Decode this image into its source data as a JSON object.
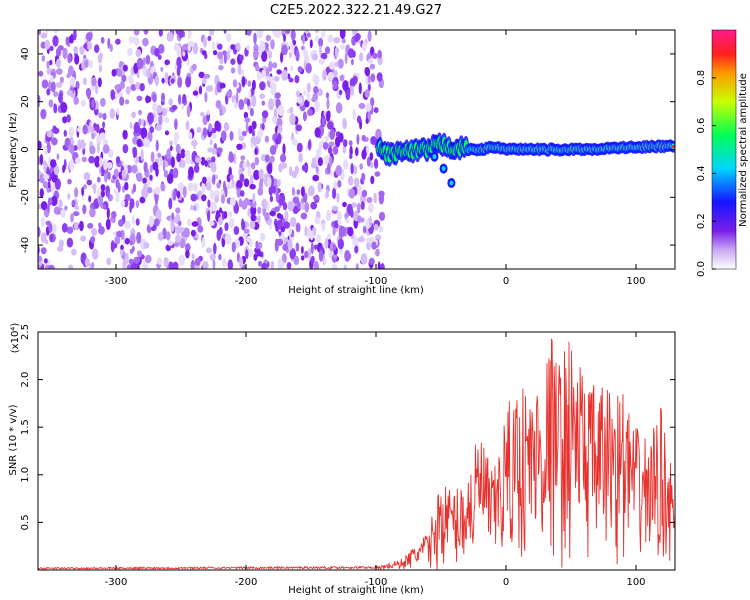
{
  "title": "C2E5.2022.322.21.49.G27",
  "chart_data": [
    {
      "type": "heatmap",
      "xlabel": "Height of straight line (km)",
      "ylabel": "Frequency (Hz)",
      "xlim": [
        -360,
        130
      ],
      "ylim": [
        -50,
        50
      ],
      "x_ticks": [
        -300,
        -200,
        -100,
        0,
        100
      ],
      "y_ticks": [
        -40,
        -20,
        0,
        20,
        40
      ],
      "noise_region_x": [
        -360,
        -95
      ],
      "signal_track": [
        {
          "x": -98,
          "y": 0.5
        },
        {
          "x": -90,
          "y": -2
        },
        {
          "x": -80,
          "y": -1
        },
        {
          "x": -70,
          "y": -1
        },
        {
          "x": -60,
          "y": 0
        },
        {
          "x": -50,
          "y": 2
        },
        {
          "x": -40,
          "y": 1
        },
        {
          "x": -30,
          "y": 0
        },
        {
          "x": -20,
          "y": 0
        },
        {
          "x": -10,
          "y": 1
        },
        {
          "x": 0,
          "y": 0
        },
        {
          "x": 20,
          "y": 0
        },
        {
          "x": 40,
          "y": 0
        },
        {
          "x": 60,
          "y": 0
        },
        {
          "x": 80,
          "y": 0.5
        },
        {
          "x": 100,
          "y": 1
        },
        {
          "x": 130,
          "y": 1.5
        }
      ],
      "side_branch": [
        {
          "x": -55,
          "y": -3
        },
        {
          "x": -48,
          "y": -8
        },
        {
          "x": -42,
          "y": -14
        }
      ],
      "colorbar": {
        "label": "Normalized spectral amplitude",
        "ticks": [
          "0.0",
          "0.2",
          "0.4",
          "0.6",
          "0.8"
        ],
        "range": [
          0,
          1
        ]
      }
    },
    {
      "type": "line",
      "xlabel": "Height of straight line (km)",
      "ylabel": "SNR (10 * v/v)",
      "y_scale_label": "(x10⁴)",
      "xlim": [
        -360,
        130
      ],
      "ylim": [
        0,
        2.5
      ],
      "x_ticks": [
        -300,
        -200,
        -100,
        0,
        100
      ],
      "y_ticks": [
        "0.5",
        "1.0",
        "1.5",
        "2.0",
        "2.5"
      ],
      "color": "#e8302c",
      "envelope": [
        {
          "x": -360,
          "y": 0.02
        },
        {
          "x": -100,
          "y": 0.03
        },
        {
          "x": -80,
          "y": 0.12
        },
        {
          "x": -60,
          "y": 0.4
        },
        {
          "x": -50,
          "y": 0.95
        },
        {
          "x": -40,
          "y": 0.85
        },
        {
          "x": -30,
          "y": 1.0
        },
        {
          "x": -20,
          "y": 1.5
        },
        {
          "x": -10,
          "y": 1.0
        },
        {
          "x": 0,
          "y": 1.7
        },
        {
          "x": 10,
          "y": 2.0
        },
        {
          "x": 20,
          "y": 1.9
        },
        {
          "x": 30,
          "y": 2.2
        },
        {
          "x": 35,
          "y": 2.5
        },
        {
          "x": 40,
          "y": 2.2
        },
        {
          "x": 50,
          "y": 2.5
        },
        {
          "x": 60,
          "y": 2.1
        },
        {
          "x": 70,
          "y": 1.9
        },
        {
          "x": 80,
          "y": 2.0
        },
        {
          "x": 90,
          "y": 1.9
        },
        {
          "x": 100,
          "y": 1.5
        },
        {
          "x": 110,
          "y": 1.4
        },
        {
          "x": 120,
          "y": 1.75
        },
        {
          "x": 130,
          "y": 0.8
        }
      ]
    }
  ]
}
